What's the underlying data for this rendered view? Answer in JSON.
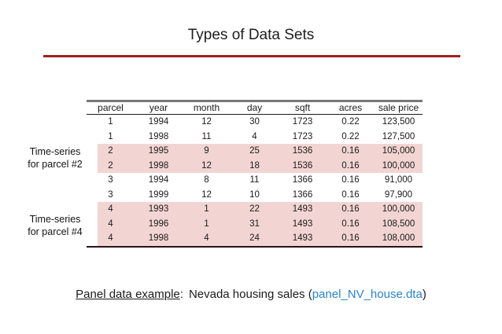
{
  "slide": {
    "title": "Types of Data Sets",
    "accent_line_color": "#a02020"
  },
  "table": {
    "columns": [
      "parcel",
      "year",
      "month",
      "day",
      "sqft",
      "acres",
      "sale price"
    ],
    "highlight_color": "#f2d5d2",
    "rows": [
      {
        "highlight": false,
        "cells": [
          "1",
          "1994",
          "12",
          "30",
          "1723",
          "0.22",
          "123,500"
        ]
      },
      {
        "highlight": false,
        "cells": [
          "1",
          "1998",
          "11",
          "4",
          "1723",
          "0.22",
          "127,500"
        ]
      },
      {
        "highlight": true,
        "cells": [
          "2",
          "1995",
          "9",
          "25",
          "1536",
          "0.16",
          "105,000"
        ]
      },
      {
        "highlight": true,
        "cells": [
          "2",
          "1998",
          "12",
          "18",
          "1536",
          "0.16",
          "100,000"
        ]
      },
      {
        "highlight": false,
        "cells": [
          "3",
          "1994",
          "8",
          "11",
          "1366",
          "0.16",
          "91,000"
        ]
      },
      {
        "highlight": false,
        "cells": [
          "3",
          "1999",
          "12",
          "10",
          "1366",
          "0.16",
          "97,900"
        ]
      },
      {
        "highlight": true,
        "cells": [
          "4",
          "1993",
          "1",
          "22",
          "1493",
          "0.16",
          "100,000"
        ]
      },
      {
        "highlight": true,
        "cells": [
          "4",
          "1996",
          "1",
          "31",
          "1493",
          "0.16",
          "108,500"
        ]
      },
      {
        "highlight": true,
        "cells": [
          "4",
          "1998",
          "4",
          "24",
          "1493",
          "0.16",
          "108,000"
        ]
      }
    ]
  },
  "annotations": {
    "parcel2": {
      "line1": "Time-series",
      "line2": "for parcel #2"
    },
    "parcel4": {
      "line1": "Time-series",
      "line2": "for parcel #4"
    }
  },
  "caption": {
    "underlined": "Panel data example",
    "colon": ":",
    "middle": "Nevada housing sales (",
    "filename": "panel_NV_house.dta",
    "close_paren": ")",
    "link_color": "#2b83c9"
  }
}
